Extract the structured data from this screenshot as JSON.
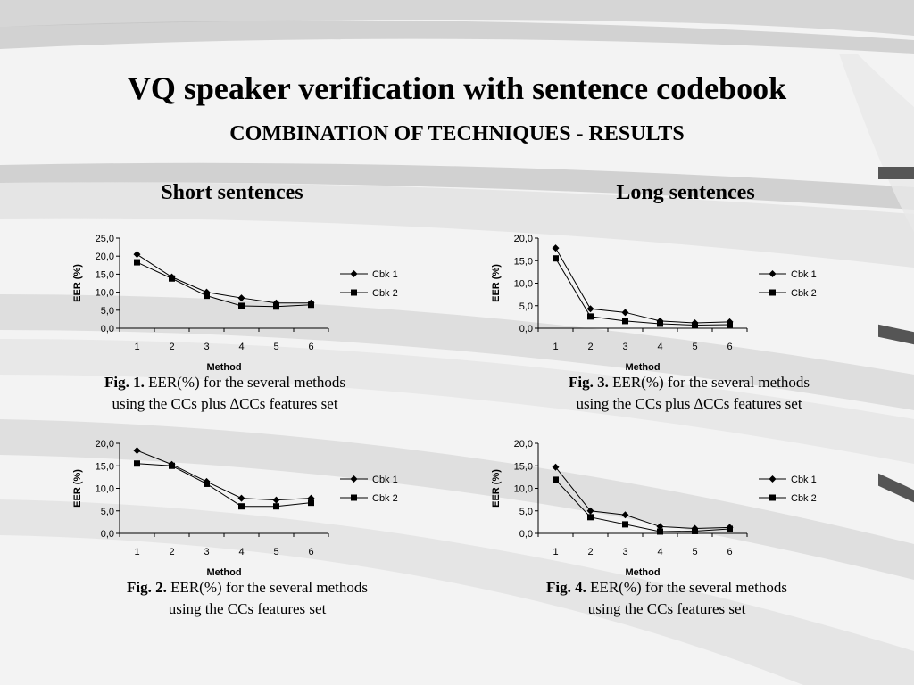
{
  "slide": {
    "title": "VQ speaker verification with sentence codebook",
    "subtitle": "COMBINATION OF TECHNIQUES - RESULTS",
    "column_short": "Short sentences",
    "column_long": "Long sentences"
  },
  "captions": [
    {
      "label": "Fig. 1.",
      "line1": "EER(%)  for the several methods",
      "line2": "using the CCs plus ∆CCs features set"
    },
    {
      "label": "Fig. 2.",
      "line1": "EER(%)  for the several methods",
      "line2": "using the CCs features set"
    },
    {
      "label": "Fig. 3.",
      "line1": "EER(%)  for the several methods",
      "line2": "using the CCs plus ∆CCs features set"
    },
    {
      "label": "Fig. 4.",
      "line1": "EER(%)  for the several methods",
      "line2": "using the CCs features set"
    }
  ],
  "chart_data": [
    {
      "type": "line",
      "xlabel": "Method",
      "ylabel": "EER (%)",
      "x": [
        1,
        2,
        3,
        4,
        5,
        6
      ],
      "ylim": [
        0,
        25
      ],
      "yticks": [
        "0,0",
        "5,0",
        "10,0",
        "15,0",
        "20,0",
        "25,0"
      ],
      "legend": "right",
      "series": [
        {
          "name": "Cbk 1",
          "marker": "diamond",
          "values": [
            20.5,
            14.2,
            10.0,
            8.4,
            7.0,
            7.0
          ]
        },
        {
          "name": "Cbk 2",
          "marker": "square",
          "values": [
            18.3,
            13.8,
            9.0,
            6.2,
            6.0,
            6.5
          ]
        }
      ]
    },
    {
      "type": "line",
      "xlabel": "Method",
      "ylabel": "EER (%)",
      "x": [
        1,
        2,
        3,
        4,
        5,
        6
      ],
      "ylim": [
        0,
        20
      ],
      "yticks": [
        "0,0",
        "5,0",
        "10,0",
        "15,0",
        "20,0"
      ],
      "legend": "right",
      "series": [
        {
          "name": "Cbk 1",
          "marker": "diamond",
          "values": [
            18.4,
            15.3,
            11.5,
            7.8,
            7.4,
            7.8
          ]
        },
        {
          "name": "Cbk 2",
          "marker": "square",
          "values": [
            15.5,
            15.0,
            11.0,
            6.0,
            6.0,
            6.8
          ]
        }
      ]
    },
    {
      "type": "line",
      "xlabel": "Method",
      "ylabel": "EER (%)",
      "x": [
        1,
        2,
        3,
        4,
        5,
        6
      ],
      "ylim": [
        0,
        20
      ],
      "yticks": [
        "0,0",
        "5,0",
        "10,0",
        "15,0",
        "20,0"
      ],
      "legend": "right",
      "series": [
        {
          "name": "Cbk 1",
          "marker": "diamond",
          "values": [
            17.8,
            4.3,
            3.5,
            1.6,
            1.2,
            1.4
          ]
        },
        {
          "name": "Cbk 2",
          "marker": "square",
          "values": [
            15.5,
            2.6,
            1.6,
            1.0,
            0.7,
            0.8
          ]
        }
      ]
    },
    {
      "type": "line",
      "xlabel": "Method",
      "ylabel": "EER (%)",
      "x": [
        1,
        2,
        3,
        4,
        5,
        6
      ],
      "ylim": [
        0,
        20
      ],
      "yticks": [
        "0,0",
        "5,0",
        "10,0",
        "15,0",
        "20,0"
      ],
      "legend": "right",
      "series": [
        {
          "name": "Cbk 1",
          "marker": "diamond",
          "values": [
            14.7,
            5.0,
            4.1,
            1.5,
            1.1,
            1.3
          ]
        },
        {
          "name": "Cbk 2",
          "marker": "square",
          "values": [
            11.9,
            3.6,
            2.0,
            0.4,
            0.5,
            1.0
          ]
        }
      ]
    }
  ]
}
